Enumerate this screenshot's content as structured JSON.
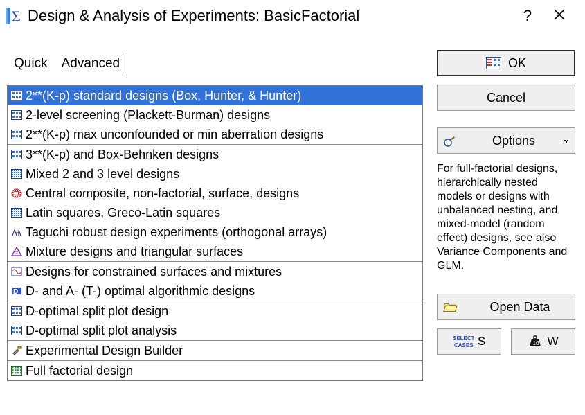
{
  "window": {
    "title": "Design & Analysis of Experiments: BasicFactorial",
    "accent_color": "#3171d8"
  },
  "tabs": {
    "items": [
      {
        "label": "Quick",
        "active": false
      },
      {
        "label": "Advanced",
        "active": true
      }
    ]
  },
  "design_list": {
    "groups": [
      [
        {
          "label": "2**(K-p) standard designs (Box, Hunter, & Hunter)",
          "icon": "grid-blue",
          "selected": true
        },
        {
          "label": "2-level screening (Plackett-Burman) designs",
          "icon": "grid-blue",
          "selected": false
        },
        {
          "label": "2**(K-p) max unconfounded or min aberration designs",
          "icon": "grid-blue",
          "selected": false
        }
      ],
      [
        {
          "label": "3**(K-p) and Box-Behnken designs",
          "icon": "grid-blue",
          "selected": false
        },
        {
          "label": "Mixed 2 and 3 level designs",
          "icon": "grid-dense",
          "selected": false
        },
        {
          "label": "Central composite, non-factorial, surface, designs",
          "icon": "sphere-red",
          "selected": false
        },
        {
          "label": "Latin squares, Greco-Latin squares",
          "icon": "grid-dense",
          "selected": false
        },
        {
          "label": "Taguchi robust design experiments (orthogonal arrays)",
          "icon": "taguchi",
          "selected": false
        },
        {
          "label": "Mixture designs and triangular surfaces",
          "icon": "triangle",
          "selected": false
        }
      ],
      [
        {
          "label": "Designs for constrained surfaces and mixtures",
          "icon": "constrained",
          "selected": false
        },
        {
          "label": "D- and A- (T-) optimal algorithmic designs",
          "icon": "d-opt",
          "selected": false
        }
      ],
      [
        {
          "label": "D-optimal split plot design",
          "icon": "grid-blue",
          "selected": false
        },
        {
          "label": "D-optimal split plot analysis",
          "icon": "grid-blue",
          "selected": false
        }
      ],
      [
        {
          "label": "Experimental Design Builder",
          "icon": "tools",
          "selected": false
        }
      ],
      [
        {
          "label": "Full factorial design",
          "icon": "matrix-green",
          "selected": false
        }
      ]
    ]
  },
  "buttons": {
    "ok": "OK",
    "cancel": "Cancel",
    "options": "Options",
    "open_data_prefix": "Open ",
    "open_data_mnemonic": "D",
    "open_data_suffix": "ata",
    "select_cases_mnemonic": "S",
    "weights_mnemonic": "W"
  },
  "info_text": "For full-factorial designs, hierarchically nested models or designs with unbalanced nesting, and mixed-model (random effect) designs, see also Variance Components and GLM.",
  "colors": {
    "button_bg": "#efefef",
    "button_border": "#9a9a9a",
    "selected_bg": "#3171d8",
    "selected_fg": "#ffffff",
    "frame_border": "#7a7a7a"
  }
}
